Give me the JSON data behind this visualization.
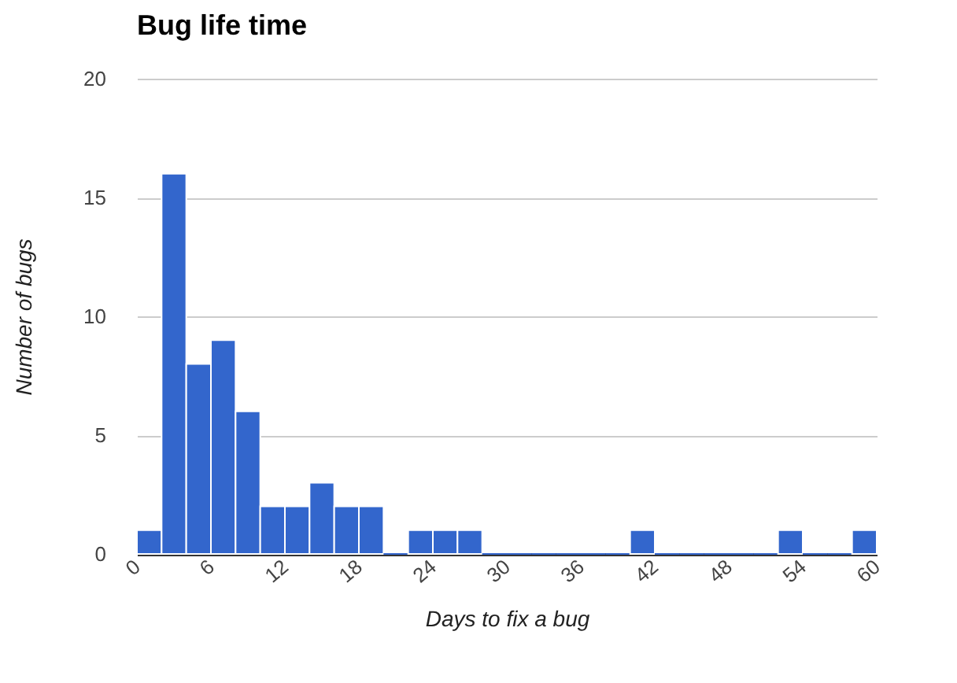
{
  "chart_data": {
    "type": "histogram",
    "title": "Bug life time",
    "xlabel": "Days to fix a bug",
    "ylabel": "Number of bugs",
    "bins": [
      0,
      2,
      4,
      6,
      8,
      10,
      12,
      14,
      16,
      18,
      20,
      22,
      24,
      26,
      28,
      30,
      32,
      34,
      36,
      38,
      40,
      42,
      44,
      46,
      48,
      50,
      52,
      54,
      56,
      58,
      60
    ],
    "values": [
      1,
      16,
      8,
      9,
      6,
      2,
      2,
      3,
      2,
      2,
      0,
      1,
      1,
      1,
      0,
      0,
      0,
      0,
      0,
      0,
      1,
      0,
      0,
      0,
      0,
      0,
      1,
      0,
      0,
      1
    ],
    "color": "#3366cc",
    "xlim": [
      0,
      60
    ],
    "xticks": [
      0,
      6,
      12,
      18,
      24,
      30,
      36,
      42,
      48,
      54,
      60
    ],
    "ylim": [
      0,
      20
    ],
    "yticks": [
      0,
      5,
      10,
      15,
      20
    ],
    "grid": "y"
  }
}
